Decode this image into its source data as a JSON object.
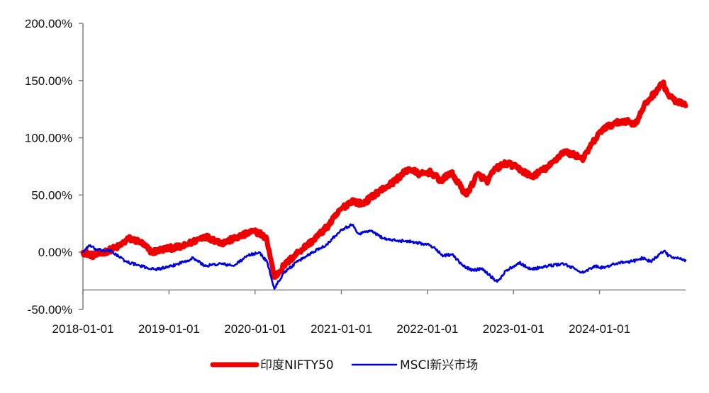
{
  "chart_data": {
    "type": "line",
    "title": "",
    "xlabel": "",
    "ylabel": "",
    "ylim": [
      -0.5,
      2.0
    ],
    "y_ticks": [
      "200.00%",
      "150.00%",
      "100.00%",
      "50.00%",
      "0.00%",
      "-50.00%"
    ],
    "y_tick_values": [
      2.0,
      1.5,
      1.0,
      0.5,
      0.0,
      -0.5
    ],
    "x_ticks": [
      "2018-01-01",
      "2019-01-01",
      "2020-01-01",
      "2021-01-01",
      "2022-01-01",
      "2023-01-01",
      "2024-01-01"
    ],
    "x_range": [
      "2018-01-01",
      "2024-12-31"
    ],
    "y_axis_crosses_at": -0.33,
    "grid": false,
    "legend_position": "bottom-center",
    "series": [
      {
        "name": "印度NIFTY50",
        "color": "#ee0000",
        "x": [
          "2018-01-01",
          "2018-02-15",
          "2018-04-01",
          "2018-06-01",
          "2018-07-15",
          "2018-09-01",
          "2018-10-20",
          "2018-12-15",
          "2019-03-01",
          "2019-06-01",
          "2019-08-15",
          "2019-11-01",
          "2019-12-20",
          "2020-01-20",
          "2020-02-20",
          "2020-03-23",
          "2020-05-01",
          "2020-07-01",
          "2020-09-01",
          "2020-11-01",
          "2021-01-01",
          "2021-02-15",
          "2021-04-01",
          "2021-06-01",
          "2021-08-01",
          "2021-10-15",
          "2021-12-01",
          "2022-01-15",
          "2022-03-01",
          "2022-04-10",
          "2022-06-15",
          "2022-08-01",
          "2022-09-15",
          "2022-10-10",
          "2022-12-01",
          "2023-01-15",
          "2023-03-20",
          "2023-06-01",
          "2023-08-01",
          "2023-09-15",
          "2023-10-25",
          "2023-12-01",
          "2024-01-15",
          "2024-03-01",
          "2024-04-15",
          "2024-06-01",
          "2024-07-15",
          "2024-09-25",
          "2024-10-20",
          "2024-11-20",
          "2024-12-31"
        ],
        "values": [
          0.0,
          -0.03,
          0.0,
          0.05,
          0.12,
          0.09,
          0.0,
          0.03,
          0.05,
          0.14,
          0.08,
          0.14,
          0.18,
          0.17,
          0.11,
          -0.22,
          -0.12,
          0.0,
          0.1,
          0.22,
          0.38,
          0.45,
          0.42,
          0.52,
          0.6,
          0.73,
          0.68,
          0.7,
          0.62,
          0.7,
          0.5,
          0.68,
          0.62,
          0.72,
          0.78,
          0.74,
          0.66,
          0.75,
          0.88,
          0.85,
          0.82,
          0.95,
          1.08,
          1.12,
          1.15,
          1.12,
          1.3,
          1.48,
          1.37,
          1.32,
          1.28
        ]
      },
      {
        "name": "MSCI新兴市场",
        "color": "#0000dd",
        "x": [
          "2018-01-01",
          "2018-01-26",
          "2018-03-01",
          "2018-05-01",
          "2018-07-01",
          "2018-09-01",
          "2018-10-30",
          "2019-01-01",
          "2019-04-15",
          "2019-06-01",
          "2019-08-10",
          "2019-10-01",
          "2019-12-01",
          "2020-01-17",
          "2020-02-20",
          "2020-03-23",
          "2020-05-01",
          "2020-07-01",
          "2020-09-01",
          "2020-11-01",
          "2021-01-01",
          "2021-02-17",
          "2021-03-15",
          "2021-05-01",
          "2021-07-01",
          "2021-08-20",
          "2021-10-01",
          "2021-12-01",
          "2022-01-15",
          "2022-03-10",
          "2022-04-15",
          "2022-06-01",
          "2022-07-15",
          "2022-08-20",
          "2022-10-24",
          "2022-12-01",
          "2023-01-26",
          "2023-03-15",
          "2023-05-01",
          "2023-07-31",
          "2023-10-25",
          "2023-12-15",
          "2024-01-22",
          "2024-03-01",
          "2024-05-20",
          "2024-07-01",
          "2024-08-05",
          "2024-09-30",
          "2024-10-20",
          "2024-11-15",
          "2024-12-31"
        ],
        "values": [
          0.0,
          0.06,
          0.02,
          0.01,
          -0.08,
          -0.12,
          -0.15,
          -0.13,
          -0.05,
          -0.12,
          -0.1,
          -0.12,
          -0.03,
          0.0,
          -0.08,
          -0.32,
          -0.18,
          -0.08,
          0.0,
          0.07,
          0.2,
          0.24,
          0.16,
          0.19,
          0.12,
          0.1,
          0.1,
          0.08,
          0.06,
          -0.03,
          -0.02,
          -0.12,
          -0.16,
          -0.14,
          -0.26,
          -0.16,
          -0.09,
          -0.15,
          -0.13,
          -0.1,
          -0.18,
          -0.12,
          -0.14,
          -0.1,
          -0.08,
          -0.05,
          -0.08,
          0.01,
          -0.03,
          -0.05,
          -0.07
        ]
      }
    ]
  }
}
